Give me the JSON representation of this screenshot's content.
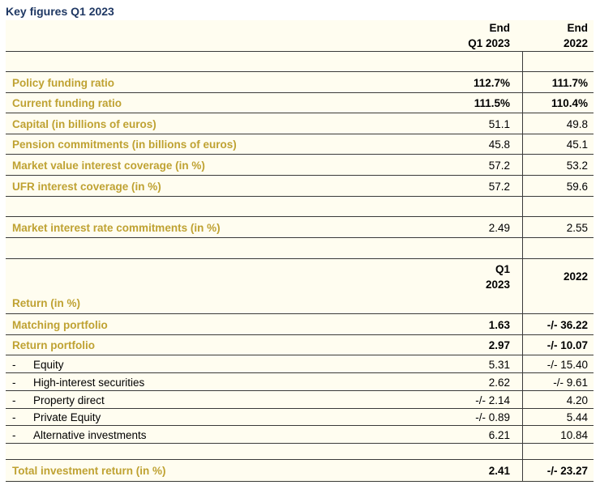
{
  "title": "Key figures Q1 2023",
  "header1": {
    "col1": [
      "End",
      "Q1 2023"
    ],
    "col2": [
      "End",
      "2022"
    ]
  },
  "rows1": [
    {
      "label": "Policy funding ratio",
      "v1": "112.7%",
      "v2": "111.7%",
      "bold": true
    },
    {
      "label": "Current funding ratio",
      "v1": "111.5%",
      "v2": "110.4%",
      "bold": true
    },
    {
      "label": "Capital (in billions of euros)",
      "v1": "51.1",
      "v2": "49.8"
    },
    {
      "label": "Pension commitments (in billions of euros)",
      "v1": "45.8",
      "v2": "45.1"
    },
    {
      "label": "Market value interest coverage (in %)",
      "v1": "57.2",
      "v2": "53.2"
    },
    {
      "label": "UFR interest coverage (in %)",
      "v1": "57.2",
      "v2": "59.6"
    }
  ],
  "row_market": {
    "label": "Market interest rate commitments (in %)",
    "v1": "2.49",
    "v2": "2.55"
  },
  "header2": {
    "col1": [
      "Q1",
      "2023"
    ],
    "col2": "2022"
  },
  "return_heading": "Return (in %)",
  "returns_main": [
    {
      "label": "Matching portfolio",
      "v1": "1.63",
      "v2": "-/- 36.22"
    },
    {
      "label": "Return portfolio",
      "v1": "2.97",
      "v2": "-/- 10.07"
    }
  ],
  "dash": "-",
  "returns_sub": [
    {
      "label": "Equity",
      "v1": "5.31",
      "v2": "-/- 15.40"
    },
    {
      "label": "High-interest securities",
      "v1": "2.62",
      "v2": "-/- 9.61"
    },
    {
      "label": "Property direct",
      "v1": "-/- 2.14",
      "v2": "4.20"
    },
    {
      "label": "Private Equity",
      "v1": "-/- 0.89",
      "v2": "5.44"
    },
    {
      "label": "Alternative investments",
      "v1": "6.21",
      "v2": "10.84"
    }
  ],
  "total": {
    "label": "Total investment return (in %)",
    "v1": "2.41",
    "v2": "-/- 23.27"
  },
  "colors": {
    "label_gold": "#bfa232",
    "title_blue": "#1f3864",
    "panel_bg": "#fffdf0"
  }
}
